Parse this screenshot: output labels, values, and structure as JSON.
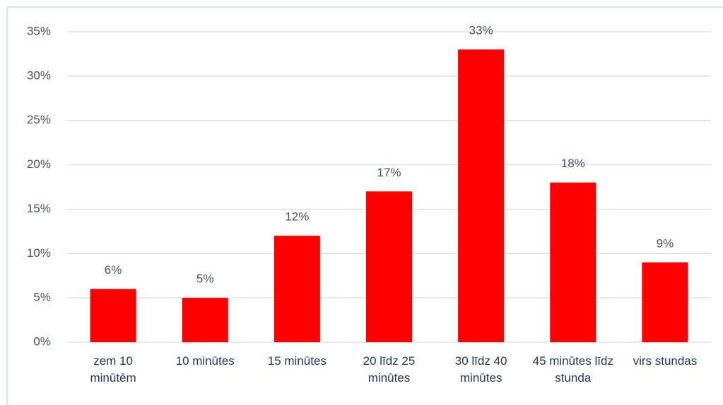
{
  "chart_data": {
    "type": "bar",
    "categories": [
      "zem 10 minūtēm",
      "10 minūtes",
      "15 minūtes",
      "20 līdz 25 minūtes",
      "30 līdz 40 minūtes",
      "45 minūtes līdz stunda",
      "virs stundas"
    ],
    "values": [
      6,
      5,
      12,
      17,
      33,
      18,
      9
    ],
    "value_labels": [
      "6%",
      "5%",
      "12%",
      "17%",
      "33%",
      "18%",
      "9%"
    ],
    "color": "#ff0000",
    "ylim": [
      0,
      35
    ],
    "yticks": [
      {
        "value": 0,
        "label": "0%"
      },
      {
        "value": 5,
        "label": "5%"
      },
      {
        "value": 10,
        "label": "10%"
      },
      {
        "value": 15,
        "label": "15%"
      },
      {
        "value": 20,
        "label": "20%"
      },
      {
        "value": 25,
        "label": "25%"
      },
      {
        "value": 30,
        "label": "30%"
      },
      {
        "value": 35,
        "label": "35%"
      }
    ],
    "grid": true
  }
}
